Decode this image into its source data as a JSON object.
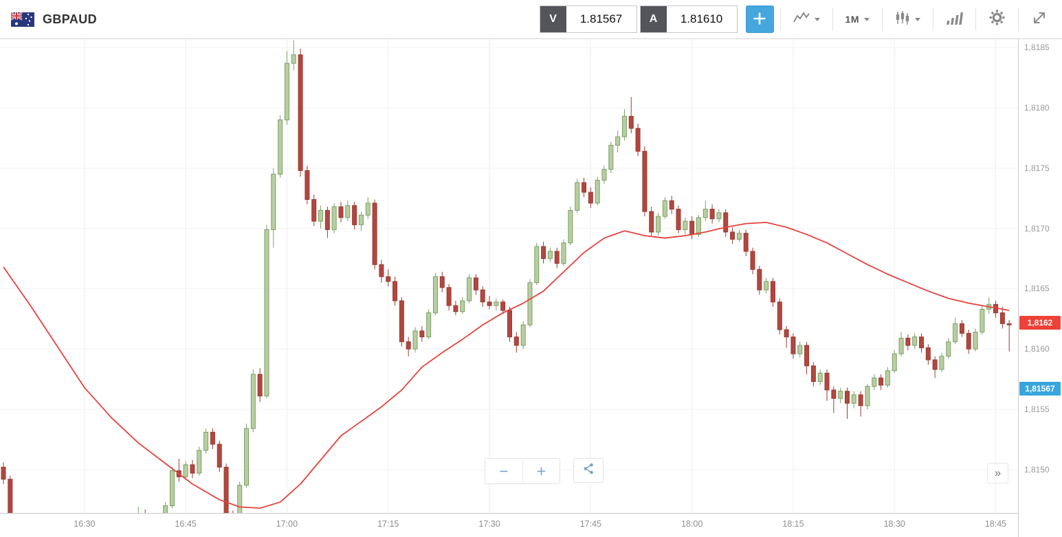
{
  "header": {
    "symbol": "GBPAUD",
    "sell": {
      "label": "V",
      "price": "1.81567"
    },
    "buy": {
      "label": "A",
      "price": "1.81610"
    },
    "timeframe": "1M"
  },
  "icons": {
    "flag": "gbpaud-flag",
    "crosshair": "crosshair",
    "chart_type": "line-chart",
    "candle_style": "candlesticks",
    "indicators": "signal-bars",
    "settings": "gear",
    "fullscreen": "expand-arrows",
    "share": "share"
  },
  "controls": {
    "zoom_out": "−",
    "zoom_in": "+",
    "collapse": "»"
  },
  "colors": {
    "up_fill": "#b7cfa0",
    "up_border": "#7c9e66",
    "down_fill": "#b2473f",
    "down_border": "#993a33",
    "ma_line": "#e8413c",
    "grid_h": "#f2f2f2",
    "grid_v": "#efefef",
    "accent_blue": "#46a7de",
    "tag_last_bg": "#ef4137",
    "tag_sell_bg": "#38a6dd",
    "axis_text": "#9a9a9a"
  },
  "axis": {
    "x_labels": [
      "16:30",
      "16:45",
      "17:00",
      "17:15",
      "17:30",
      "17:45",
      "18:00",
      "18:15",
      "18:30",
      "18:45"
    ],
    "y_labels": [
      {
        "text": "1,8185",
        "price": 1.8185
      },
      {
        "text": "1,8180",
        "price": 1.818
      },
      {
        "text": "1,8175",
        "price": 1.8175
      },
      {
        "text": "1,8170",
        "price": 1.817
      },
      {
        "text": "1,8165",
        "price": 1.8165
      },
      {
        "text": "1,8160",
        "price": 1.816
      },
      {
        "text": "1,8155",
        "price": 1.8155
      },
      {
        "text": "1,8150",
        "price": 1.815
      }
    ]
  },
  "tags": [
    {
      "name": "last-price-tag",
      "text": "1,8162",
      "price": 1.81622,
      "bg": "#ef4137"
    },
    {
      "name": "sell-price-tag",
      "text": "1,81567",
      "price": 1.81567,
      "bg": "#38a6dd"
    }
  ],
  "chart_data": {
    "type": "candlestick",
    "title": "GBPAUD 1M",
    "interval": "1m",
    "start_time": "16:18",
    "x_range": [
      "16:18",
      "18:47"
    ],
    "price_view": [
      1.81464,
      1.81857
    ],
    "candles": [
      [
        1.81502,
        1.81506,
        1.81488,
        1.81492
      ],
      [
        1.81492,
        1.81495,
        1.81446,
        1.81452
      ],
      [
        1.81452,
        1.81458,
        1.81438,
        1.81443
      ],
      [
        1.81443,
        1.81447,
        1.81429,
        1.81433
      ],
      [
        1.81433,
        1.81438,
        1.81424,
        1.81428
      ],
      [
        1.81428,
        1.81434,
        1.81422,
        1.8143
      ],
      [
        1.8143,
        1.81435,
        1.81424,
        1.81427
      ],
      [
        1.81427,
        1.81433,
        1.81423,
        1.81431
      ],
      [
        1.81431,
        1.81436,
        1.81425,
        1.81429
      ],
      [
        1.81429,
        1.81434,
        1.81424,
        1.81432
      ],
      [
        1.81432,
        1.81437,
        1.81426,
        1.8143
      ],
      [
        1.8143,
        1.81436,
        1.81425,
        1.81434
      ],
      [
        1.81434,
        1.81439,
        1.81428,
        1.81432
      ],
      [
        1.81432,
        1.81437,
        1.81427,
        1.81435
      ],
      [
        1.81435,
        1.8144,
        1.81429,
        1.81433
      ],
      [
        1.81433,
        1.81439,
        1.81428,
        1.81437
      ],
      [
        1.81437,
        1.81442,
        1.81431,
        1.81439
      ],
      [
        1.81439,
        1.81444,
        1.81433,
        1.81441
      ],
      [
        1.81441,
        1.81446,
        1.81435,
        1.81443
      ],
      [
        1.81443,
        1.81448,
        1.81437,
        1.81445
      ],
      [
        1.81445,
        1.81469,
        1.81441,
        1.81448
      ],
      [
        1.81448,
        1.81467,
        1.81443,
        1.81446
      ],
      [
        1.81446,
        1.81452,
        1.81441,
        1.81449
      ],
      [
        1.81449,
        1.81455,
        1.81444,
        1.81452
      ],
      [
        1.81452,
        1.81473,
        1.81448,
        1.8147
      ],
      [
        1.8147,
        1.81502,
        1.81468,
        1.81499
      ],
      [
        1.81499,
        1.81509,
        1.8149,
        1.81494
      ],
      [
        1.81494,
        1.81507,
        1.81491,
        1.81504
      ],
      [
        1.81504,
        1.81508,
        1.81493,
        1.81497
      ],
      [
        1.81497,
        1.81519,
        1.81495,
        1.81516
      ],
      [
        1.81516,
        1.81534,
        1.81513,
        1.81531
      ],
      [
        1.81531,
        1.81534,
        1.81517,
        1.81521
      ],
      [
        1.81521,
        1.81524,
        1.81498,
        1.81502
      ],
      [
        1.81502,
        1.81505,
        1.81459,
        1.81463
      ],
      [
        1.81463,
        1.81466,
        1.81435,
        1.81441
      ],
      [
        1.81441,
        1.8149,
        1.81439,
        1.81487
      ],
      [
        1.81487,
        1.81538,
        1.81485,
        1.81534
      ],
      [
        1.81534,
        1.81583,
        1.81531,
        1.81579
      ],
      [
        1.81579,
        1.81584,
        1.81556,
        1.81561
      ],
      [
        1.81561,
        1.81703,
        1.81559,
        1.81699
      ],
      [
        1.81699,
        1.8175,
        1.81684,
        1.81745
      ],
      [
        1.81745,
        1.81794,
        1.81742,
        1.8179
      ],
      [
        1.8179,
        1.81847,
        1.81786,
        1.81837
      ],
      [
        1.81837,
        1.81856,
        1.81831,
        1.81844
      ],
      [
        1.81844,
        1.81849,
        1.81743,
        1.81748
      ],
      [
        1.81748,
        1.81752,
        1.8172,
        1.81724
      ],
      [
        1.81724,
        1.81728,
        1.81702,
        1.81706
      ],
      [
        1.81706,
        1.81719,
        1.817,
        1.81715
      ],
      [
        1.81715,
        1.81718,
        1.81692,
        1.81699
      ],
      [
        1.81699,
        1.81721,
        1.81696,
        1.81718
      ],
      [
        1.81718,
        1.81722,
        1.81705,
        1.81709
      ],
      [
        1.81709,
        1.81723,
        1.81706,
        1.81719
      ],
      [
        1.81719,
        1.81722,
        1.81699,
        1.81703
      ],
      [
        1.81703,
        1.81714,
        1.81698,
        1.81711
      ],
      [
        1.81711,
        1.81726,
        1.81708,
        1.81721
      ],
      [
        1.81721,
        1.81724,
        1.81666,
        1.8167
      ],
      [
        1.8167,
        1.81674,
        1.81655,
        1.8166
      ],
      [
        1.8166,
        1.81666,
        1.81652,
        1.81656
      ],
      [
        1.81656,
        1.8166,
        1.81636,
        1.8164
      ],
      [
        1.8164,
        1.81643,
        1.81602,
        1.81606
      ],
      [
        1.81606,
        1.8161,
        1.81594,
        1.816
      ],
      [
        1.816,
        1.81618,
        1.81597,
        1.81615
      ],
      [
        1.81615,
        1.81619,
        1.81606,
        1.8161
      ],
      [
        1.8161,
        1.81633,
        1.81608,
        1.8163
      ],
      [
        1.8163,
        1.81663,
        1.81628,
        1.8166
      ],
      [
        1.8166,
        1.81664,
        1.81647,
        1.81651
      ],
      [
        1.81651,
        1.81654,
        1.81632,
        1.81636
      ],
      [
        1.81636,
        1.8164,
        1.81628,
        1.81631
      ],
      [
        1.81631,
        1.81643,
        1.81629,
        1.8164
      ],
      [
        1.8164,
        1.81662,
        1.81638,
        1.81659
      ],
      [
        1.81659,
        1.81662,
        1.81645,
        1.81649
      ],
      [
        1.81649,
        1.81652,
        1.81635,
        1.81639
      ],
      [
        1.81639,
        1.81644,
        1.81633,
        1.81636
      ],
      [
        1.81636,
        1.81642,
        1.81632,
        1.81639
      ],
      [
        1.81639,
        1.81641,
        1.81629,
        1.81632
      ],
      [
        1.81632,
        1.81635,
        1.81606,
        1.8161
      ],
      [
        1.8161,
        1.81614,
        1.81597,
        1.81603
      ],
      [
        1.81603,
        1.81623,
        1.816,
        1.8162
      ],
      [
        1.8162,
        1.81658,
        1.81618,
        1.81655
      ],
      [
        1.81655,
        1.81688,
        1.81653,
        1.81685
      ],
      [
        1.81685,
        1.81689,
        1.81671,
        1.81675
      ],
      [
        1.81675,
        1.81684,
        1.81672,
        1.81681
      ],
      [
        1.81681,
        1.81684,
        1.81667,
        1.81671
      ],
      [
        1.81671,
        1.81691,
        1.81669,
        1.81688
      ],
      [
        1.81688,
        1.81718,
        1.81686,
        1.81715
      ],
      [
        1.81715,
        1.81741,
        1.81713,
        1.81738
      ],
      [
        1.81738,
        1.81742,
        1.81726,
        1.8173
      ],
      [
        1.8173,
        1.81734,
        1.81717,
        1.81721
      ],
      [
        1.81721,
        1.81743,
        1.81719,
        1.8174
      ],
      [
        1.8174,
        1.81752,
        1.81737,
        1.81749
      ],
      [
        1.81749,
        1.81772,
        1.81746,
        1.81769
      ],
      [
        1.81769,
        1.81781,
        1.81763,
        1.81776
      ],
      [
        1.81776,
        1.81799,
        1.81773,
        1.81793
      ],
      [
        1.81793,
        1.81809,
        1.81779,
        1.81783
      ],
      [
        1.81783,
        1.81787,
        1.8176,
        1.81764
      ],
      [
        1.81764,
        1.81768,
        1.8171,
        1.81714
      ],
      [
        1.81714,
        1.81718,
        1.81693,
        1.81697
      ],
      [
        1.81697,
        1.81713,
        1.81694,
        1.8171
      ],
      [
        1.8171,
        1.81726,
        1.81708,
        1.81723
      ],
      [
        1.81723,
        1.81727,
        1.81712,
        1.81716
      ],
      [
        1.81716,
        1.81719,
        1.81696,
        1.81699
      ],
      [
        1.81699,
        1.81709,
        1.81695,
        1.81706
      ],
      [
        1.81706,
        1.8171,
        1.81691,
        1.81695
      ],
      [
        1.81695,
        1.81711,
        1.81693,
        1.81709
      ],
      [
        1.81709,
        1.81723,
        1.81706,
        1.81716
      ],
      [
        1.81716,
        1.8172,
        1.81704,
        1.81708
      ],
      [
        1.81708,
        1.81716,
        1.81705,
        1.81713
      ],
      [
        1.81713,
        1.81716,
        1.81693,
        1.81697
      ],
      [
        1.81697,
        1.81701,
        1.81687,
        1.81691
      ],
      [
        1.81691,
        1.81699,
        1.81689,
        1.81696
      ],
      [
        1.81696,
        1.81699,
        1.81677,
        1.81681
      ],
      [
        1.81681,
        1.81684,
        1.81662,
        1.81666
      ],
      [
        1.81666,
        1.81669,
        1.81645,
        1.81649
      ],
      [
        1.81649,
        1.81659,
        1.81646,
        1.81656
      ],
      [
        1.81656,
        1.81659,
        1.81635,
        1.81639
      ],
      [
        1.81639,
        1.81642,
        1.81612,
        1.81616
      ],
      [
        1.81616,
        1.81619,
        1.81601,
        1.8161
      ],
      [
        1.8161,
        1.81613,
        1.81592,
        1.81596
      ],
      [
        1.81596,
        1.81606,
        1.81593,
        1.81603
      ],
      [
        1.81603,
        1.81606,
        1.81579,
        1.81586
      ],
      [
        1.81586,
        1.81589,
        1.81569,
        1.81573
      ],
      [
        1.81573,
        1.81583,
        1.8157,
        1.8158
      ],
      [
        1.8158,
        1.81583,
        1.81557,
        1.81566
      ],
      [
        1.81566,
        1.81569,
        1.81547,
        1.81559
      ],
      [
        1.81559,
        1.81568,
        1.81555,
        1.81565
      ],
      [
        1.81565,
        1.81568,
        1.81542,
        1.81555
      ],
      [
        1.81555,
        1.81565,
        1.81551,
        1.81562
      ],
      [
        1.81562,
        1.81565,
        1.81544,
        1.81553
      ],
      [
        1.81553,
        1.81571,
        1.8155,
        1.81569
      ],
      [
        1.81569,
        1.81579,
        1.81566,
        1.81576
      ],
      [
        1.81576,
        1.81579,
        1.81566,
        1.8157
      ],
      [
        1.8157,
        1.81585,
        1.81568,
        1.81582
      ],
      [
        1.81582,
        1.81599,
        1.8158,
        1.81596
      ],
      [
        1.81596,
        1.81614,
        1.81594,
        1.81609
      ],
      [
        1.81609,
        1.81612,
        1.81599,
        1.81603
      ],
      [
        1.81603,
        1.81613,
        1.816,
        1.8161
      ],
      [
        1.8161,
        1.81613,
        1.81597,
        1.81601
      ],
      [
        1.81601,
        1.81604,
        1.81587,
        1.81591
      ],
      [
        1.81591,
        1.81594,
        1.81576,
        1.81583
      ],
      [
        1.81583,
        1.81597,
        1.81581,
        1.81594
      ],
      [
        1.81594,
        1.81609,
        1.81592,
        1.81606
      ],
      [
        1.81606,
        1.81626,
        1.81604,
        1.81621
      ],
      [
        1.81621,
        1.81624,
        1.8161,
        1.81613
      ],
      [
        1.81613,
        1.81616,
        1.81596,
        1.816
      ],
      [
        1.816,
        1.81617,
        1.81598,
        1.81614
      ],
      [
        1.81614,
        1.81636,
        1.81612,
        1.81633
      ],
      [
        1.81633,
        1.81643,
        1.81629,
        1.81637
      ],
      [
        1.81637,
        1.8164,
        1.81626,
        1.8163
      ],
      [
        1.8163,
        1.81635,
        1.81617,
        1.81621
      ],
      [
        1.81621,
        1.81624,
        1.81598,
        1.8162
      ]
    ],
    "ma_line": {
      "name": "moving-average",
      "points": [
        [
          "16:18",
          1.81668
        ],
        [
          "16:22",
          1.81636
        ],
        [
          "16:26",
          1.81602
        ],
        [
          "16:30",
          1.81568
        ],
        [
          "16:34",
          1.81543
        ],
        [
          "16:38",
          1.81522
        ],
        [
          "16:42",
          1.81505
        ],
        [
          "16:46",
          1.81488
        ],
        [
          "16:50",
          1.81475
        ],
        [
          "16:53",
          1.81469
        ],
        [
          "16:56",
          1.81468
        ],
        [
          "16:59",
          1.81473
        ],
        [
          "17:02",
          1.81488
        ],
        [
          "17:05",
          1.81508
        ],
        [
          "17:08",
          1.81528
        ],
        [
          "17:11",
          1.8154
        ],
        [
          "17:14",
          1.81552
        ],
        [
          "17:17",
          1.81566
        ],
        [
          "17:20",
          1.81585
        ],
        [
          "17:23",
          1.81597
        ],
        [
          "17:26",
          1.81608
        ],
        [
          "17:29",
          1.8162
        ],
        [
          "17:32",
          1.8163
        ],
        [
          "17:35",
          1.81638
        ],
        [
          "17:38",
          1.81648
        ],
        [
          "17:41",
          1.81664
        ],
        [
          "17:44",
          1.8168
        ],
        [
          "17:47",
          1.81692
        ],
        [
          "17:50",
          1.81698
        ],
        [
          "17:53",
          1.81694
        ],
        [
          "17:56",
          1.81692
        ],
        [
          "17:59",
          1.81694
        ],
        [
          "18:02",
          1.81697
        ],
        [
          "18:05",
          1.81701
        ],
        [
          "18:08",
          1.81704
        ],
        [
          "18:11",
          1.81705
        ],
        [
          "18:14",
          1.81701
        ],
        [
          "18:17",
          1.81695
        ],
        [
          "18:20",
          1.81688
        ],
        [
          "18:23",
          1.81679
        ],
        [
          "18:26",
          1.8167
        ],
        [
          "18:29",
          1.81662
        ],
        [
          "18:32",
          1.81655
        ],
        [
          "18:35",
          1.81648
        ],
        [
          "18:38",
          1.81642
        ],
        [
          "18:41",
          1.81638
        ],
        [
          "18:44",
          1.81635
        ],
        [
          "18:47",
          1.81632
        ]
      ]
    }
  }
}
